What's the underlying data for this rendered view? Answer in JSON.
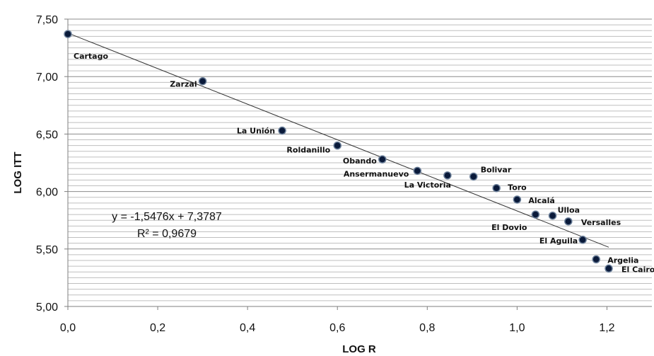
{
  "chart_data": {
    "type": "scatter",
    "title": "",
    "xlabel": "LOG R",
    "ylabel": "LOG ITT",
    "xlim": [
      0,
      1.3
    ],
    "ylim": [
      5.0,
      7.5
    ],
    "x_ticks": [
      "0,0",
      "0,2",
      "0,4",
      "0,6",
      "0,8",
      "1,0",
      "1,2"
    ],
    "y_ticks": [
      "5,00",
      "5,50",
      "6,00",
      "6,50",
      "7,00",
      "7,50"
    ],
    "grid": "horizontal",
    "points": [
      {
        "label": "Cartago",
        "x": 0.0,
        "y": 7.37
      },
      {
        "label": "Zarzal",
        "x": 0.3,
        "y": 6.96
      },
      {
        "label": "La Unión",
        "x": 0.477,
        "y": 6.53
      },
      {
        "label": "Roldanillo",
        "x": 0.6,
        "y": 6.4
      },
      {
        "label": "Obando",
        "x": 0.7,
        "y": 6.28
      },
      {
        "label": "Ansermanuevo",
        "x": 0.778,
        "y": 6.18
      },
      {
        "label": "La Victoria",
        "x": 0.845,
        "y": 6.14
      },
      {
        "label": "Bolivar",
        "x": 0.903,
        "y": 6.13
      },
      {
        "label": "Toro",
        "x": 0.954,
        "y": 6.03
      },
      {
        "label": "Alcalá",
        "x": 1.0,
        "y": 5.93
      },
      {
        "label": "El Dovio",
        "x": 1.041,
        "y": 5.8
      },
      {
        "label": "Ulloa",
        "x": 1.079,
        "y": 5.79
      },
      {
        "label": "Versalles",
        "x": 1.114,
        "y": 5.74
      },
      {
        "label": "El Aguila",
        "x": 1.146,
        "y": 5.58
      },
      {
        "label": "Argelia",
        "x": 1.176,
        "y": 5.41
      },
      {
        "label": "El Cairo",
        "x": 1.204,
        "y": 5.33
      }
    ],
    "trendline": {
      "slope": -1.5476,
      "intercept": 7.3787,
      "x_range": [
        0.0,
        1.204
      ],
      "equation": "y = -1,5476x + 7,3787",
      "r_squared": "R² = 0,9679"
    },
    "marker_color": "#0a1a3a",
    "trendline_color": "#333333"
  }
}
